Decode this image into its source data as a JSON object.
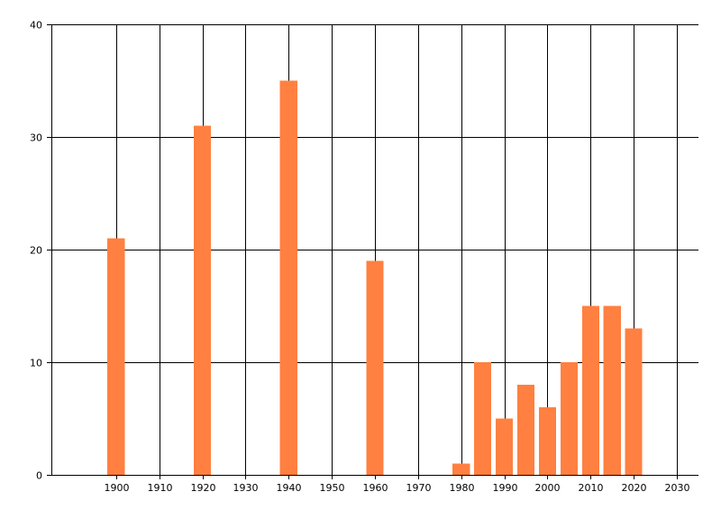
{
  "chart_data": {
    "type": "bar",
    "x": [
      1900,
      1920,
      1940,
      1960,
      1980,
      1985,
      1990,
      1995,
      2000,
      2005,
      2010,
      2015,
      2020
    ],
    "values": [
      21,
      31,
      35,
      19,
      1,
      10,
      5,
      8,
      6,
      10,
      15,
      15,
      13
    ],
    "xlim": [
      1885,
      2035
    ],
    "ylim": [
      0,
      40
    ],
    "x_ticks": [
      1900,
      1910,
      1920,
      1930,
      1940,
      1950,
      1960,
      1970,
      1980,
      1990,
      2000,
      2010,
      2020,
      2030
    ],
    "y_ticks": [
      0,
      10,
      20,
      30,
      40
    ],
    "bar_width": 4,
    "grid": true,
    "title": "",
    "xlabel": "",
    "ylabel": "",
    "bar_color": "#FF8040",
    "grid_color": "#000000"
  }
}
